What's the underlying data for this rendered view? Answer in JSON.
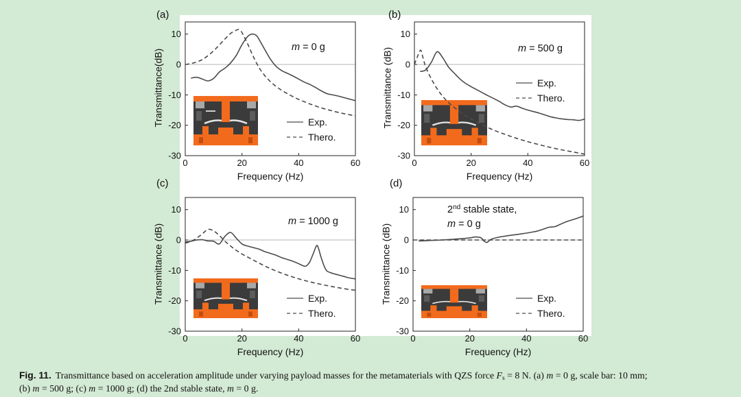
{
  "colors": {
    "background": "#d3ead4",
    "panel": "#ffffff",
    "line": "#4a4a4a",
    "zero_line": "#b5b5b5",
    "axis": "#222222",
    "photo_orange": "#f26b1d",
    "photo_dark": "#3b3b3b"
  },
  "chart_data": [
    {
      "type": "line",
      "title": "(a)",
      "xlabel": "Frequency (Hz)",
      "ylabel": "Transmittance(dB)",
      "xlim": [
        0,
        60
      ],
      "ylim": [
        -30,
        14
      ],
      "xticks": [
        0,
        20,
        40,
        60
      ],
      "xtick_labels": [
        "0",
        "20",
        "40",
        "60"
      ],
      "yticks": [
        10,
        0,
        -10,
        -20,
        -30
      ],
      "ytick_labels": [
        "10",
        "0",
        "-10",
        "-20",
        "-30"
      ],
      "grid": false,
      "legend_position": "bottom-right",
      "annotation": [
        [
          {
            "t": "m",
            "i": true
          },
          {
            "t": " = 0 g"
          }
        ]
      ],
      "series": [
        {
          "name": "Exp.",
          "style": "solid",
          "x": [
            2,
            4,
            6,
            8,
            10,
            12,
            14,
            16,
            18,
            20,
            22,
            23.5,
            25,
            26,
            28,
            30,
            32,
            34,
            36,
            38,
            40,
            42,
            44,
            46,
            48,
            50,
            52,
            54,
            56,
            58,
            60
          ],
          "y": [
            -4.5,
            -4.2,
            -4.8,
            -5.4,
            -4.6,
            -2.5,
            -1.2,
            0.5,
            3.0,
            6.5,
            9.2,
            10.0,
            9.6,
            8.3,
            5.0,
            1.8,
            -0.6,
            -2.0,
            -2.9,
            -3.8,
            -4.8,
            -5.8,
            -6.6,
            -7.6,
            -8.7,
            -9.6,
            -10.0,
            -10.4,
            -10.9,
            -11.4,
            -11.9
          ]
        },
        {
          "name": "Thero.",
          "style": "dashed",
          "x": [
            0,
            2,
            4,
            6,
            8,
            10,
            12,
            14,
            16,
            18,
            19,
            20,
            22,
            24,
            26,
            28,
            30,
            32,
            34,
            36,
            38,
            40,
            44,
            48,
            52,
            56,
            60
          ],
          "y": [
            0,
            0.3,
            0.8,
            1.6,
            2.9,
            4.5,
            6.4,
            8.4,
            10.2,
            11.3,
            11.5,
            10.5,
            6.8,
            2.6,
            -1.0,
            -3.6,
            -5.6,
            -7.2,
            -8.5,
            -9.6,
            -10.6,
            -11.5,
            -13.0,
            -14.3,
            -15.3,
            -16.2,
            -16.9
          ]
        }
      ]
    },
    {
      "type": "line",
      "title": "(b)",
      "xlabel": "Frequency (Hz)",
      "ylabel": "Transmittance (dB)",
      "xlim": [
        0,
        60
      ],
      "ylim": [
        -30,
        14
      ],
      "xticks": [
        0,
        20,
        40,
        60
      ],
      "xtick_labels": [
        "0",
        "20",
        "40",
        "60"
      ],
      "yticks": [
        10,
        0,
        -10,
        -20,
        -30
      ],
      "ytick_labels": [
        "10",
        "0",
        "-10",
        "-20",
        "-30"
      ],
      "grid": false,
      "legend_position": "right",
      "annotation": [
        [
          {
            "t": "m",
            "i": true
          },
          {
            "t": " = 500 g"
          }
        ]
      ],
      "series": [
        {
          "name": "Exp.",
          "style": "solid",
          "x": [
            2,
            4,
            6,
            8,
            10,
            12,
            14,
            16,
            18,
            20,
            22,
            24,
            26,
            28,
            30,
            32,
            34,
            36,
            38,
            40,
            42,
            44,
            46,
            48,
            50,
            52,
            54,
            56,
            58,
            60
          ],
          "y": [
            -2.3,
            -1.8,
            0.8,
            4.2,
            2.2,
            -0.8,
            -2.8,
            -4.7,
            -6.2,
            -7.3,
            -8.3,
            -9.3,
            -10.3,
            -11.2,
            -12.2,
            -13.3,
            -14.0,
            -13.7,
            -14.4,
            -15.0,
            -15.5,
            -16.0,
            -16.6,
            -17.2,
            -17.6,
            -17.9,
            -18.1,
            -18.2,
            -18.4,
            -18.0
          ]
        },
        {
          "name": "Thero.",
          "style": "dashed",
          "x": [
            0,
            1,
            2.2,
            3,
            4,
            6,
            8,
            10,
            12,
            14,
            16,
            18,
            20,
            24,
            28,
            32,
            36,
            40,
            44,
            48,
            52,
            56,
            60
          ],
          "y": [
            0,
            2.4,
            4.7,
            2.3,
            -0.8,
            -4.8,
            -8.0,
            -10.5,
            -12.5,
            -14.1,
            -15.5,
            -16.8,
            -17.9,
            -19.9,
            -21.6,
            -23.0,
            -24.3,
            -25.4,
            -26.4,
            -27.3,
            -28.1,
            -28.8,
            -29.5
          ]
        }
      ]
    },
    {
      "type": "line",
      "title": "(c)",
      "xlabel": "Frequency (Hz)",
      "ylabel": "Transmittance (dB)",
      "xlim": [
        0,
        60
      ],
      "ylim": [
        -30,
        14
      ],
      "xticks": [
        0,
        20,
        40,
        60
      ],
      "xtick_labels": [
        "0",
        "20",
        "40",
        "60"
      ],
      "yticks": [
        10,
        0,
        -10,
        -20,
        -30
      ],
      "ytick_labels": [
        "10",
        "0",
        "-10",
        "-20",
        "-30"
      ],
      "grid": false,
      "legend_position": "bottom-right",
      "annotation": [
        [
          {
            "t": "m",
            "i": true
          },
          {
            "t": " = 1000 g"
          }
        ]
      ],
      "series": [
        {
          "name": "Exp.",
          "style": "solid",
          "x": [
            0,
            2,
            4,
            6,
            8,
            10,
            12,
            14,
            16,
            18,
            20,
            22,
            24,
            26,
            28,
            30,
            32,
            34,
            36,
            38,
            40,
            42,
            43,
            44,
            45,
            46,
            46.5,
            47,
            48,
            49,
            50,
            52,
            54,
            56,
            58,
            60
          ],
          "y": [
            -0.6,
            -0.4,
            0,
            0.1,
            -0.3,
            -0.4,
            -1.3,
            1.2,
            2.5,
            0.6,
            -1.3,
            -2.0,
            -2.5,
            -3.0,
            -3.8,
            -4.4,
            -5.0,
            -5.8,
            -6.4,
            -7.0,
            -7.8,
            -8.6,
            -8.3,
            -7.0,
            -4.8,
            -2.4,
            -1.8,
            -2.8,
            -6.0,
            -8.6,
            -10.2,
            -11.0,
            -11.5,
            -12.0,
            -12.5,
            -12.8
          ]
        },
        {
          "name": "Thero.",
          "style": "dashed",
          "x": [
            0,
            2,
            4,
            6,
            8,
            10,
            12,
            14,
            16,
            18,
            20,
            22,
            24,
            26,
            28,
            30,
            34,
            38,
            42,
            46,
            50,
            54,
            58,
            60
          ],
          "y": [
            -1.0,
            -0.5,
            0.6,
            2.0,
            3.5,
            3.0,
            1.5,
            -0.4,
            -2.0,
            -3.4,
            -4.6,
            -5.6,
            -6.6,
            -7.6,
            -8.5,
            -9.4,
            -10.9,
            -12.2,
            -13.3,
            -14.2,
            -15.0,
            -15.7,
            -16.3,
            -16.5
          ]
        }
      ]
    },
    {
      "type": "line",
      "title": "(d)",
      "xlabel": "Frequency (Hz)",
      "ylabel": "Transmittance (dB)",
      "xlim": [
        0,
        60
      ],
      "ylim": [
        -30,
        14
      ],
      "xticks": [
        0,
        20,
        40,
        60
      ],
      "xtick_labels": [
        "0",
        "20",
        "40",
        "60"
      ],
      "yticks": [
        10,
        0,
        -10,
        -20,
        -30
      ],
      "ytick_labels": [
        "10",
        "0",
        "-10",
        "-20",
        "-30"
      ],
      "grid": false,
      "legend_position": "bottom-right",
      "annotation": [
        [
          {
            "t": "2"
          },
          {
            "t": "nd",
            "sup": true
          },
          {
            "t": " stable state,"
          }
        ],
        [
          {
            "t": "m",
            "i": true
          },
          {
            "t": " = 0 g"
          }
        ]
      ],
      "series": [
        {
          "name": "Exp.",
          "style": "solid",
          "x": [
            2,
            5,
            10,
            15,
            20,
            22,
            24,
            25,
            26,
            27,
            28,
            30,
            34,
            38,
            42,
            44,
            46,
            48,
            50,
            52,
            54,
            56,
            58,
            60
          ],
          "y": [
            -0.3,
            -0.2,
            0,
            0.3,
            0.7,
            1.0,
            0.7,
            -0.3,
            -0.8,
            -0.1,
            0.4,
            0.9,
            1.5,
            2.0,
            2.6,
            3.0,
            3.6,
            4.2,
            4.4,
            5.2,
            6.0,
            6.6,
            7.2,
            7.9
          ]
        },
        {
          "name": "Thero.",
          "style": "dashed",
          "x": [
            0,
            60
          ],
          "y": [
            0,
            0
          ]
        }
      ]
    }
  ],
  "caption": {
    "label": "Fig. 11.",
    "line1": [
      "Transmittance based on acceleration amplitude under varying payload masses for the metamaterials with QZS force ",
      "F",
      "s",
      " = 8 N. (a) ",
      "m",
      " = 0 g, scale bar: 10 mm;"
    ],
    "line2": [
      "(b) ",
      "m",
      " = 500 g; (c) ",
      "m",
      " = 1000 g; (d) the 2nd stable state, ",
      "m",
      " = 0 g."
    ]
  }
}
